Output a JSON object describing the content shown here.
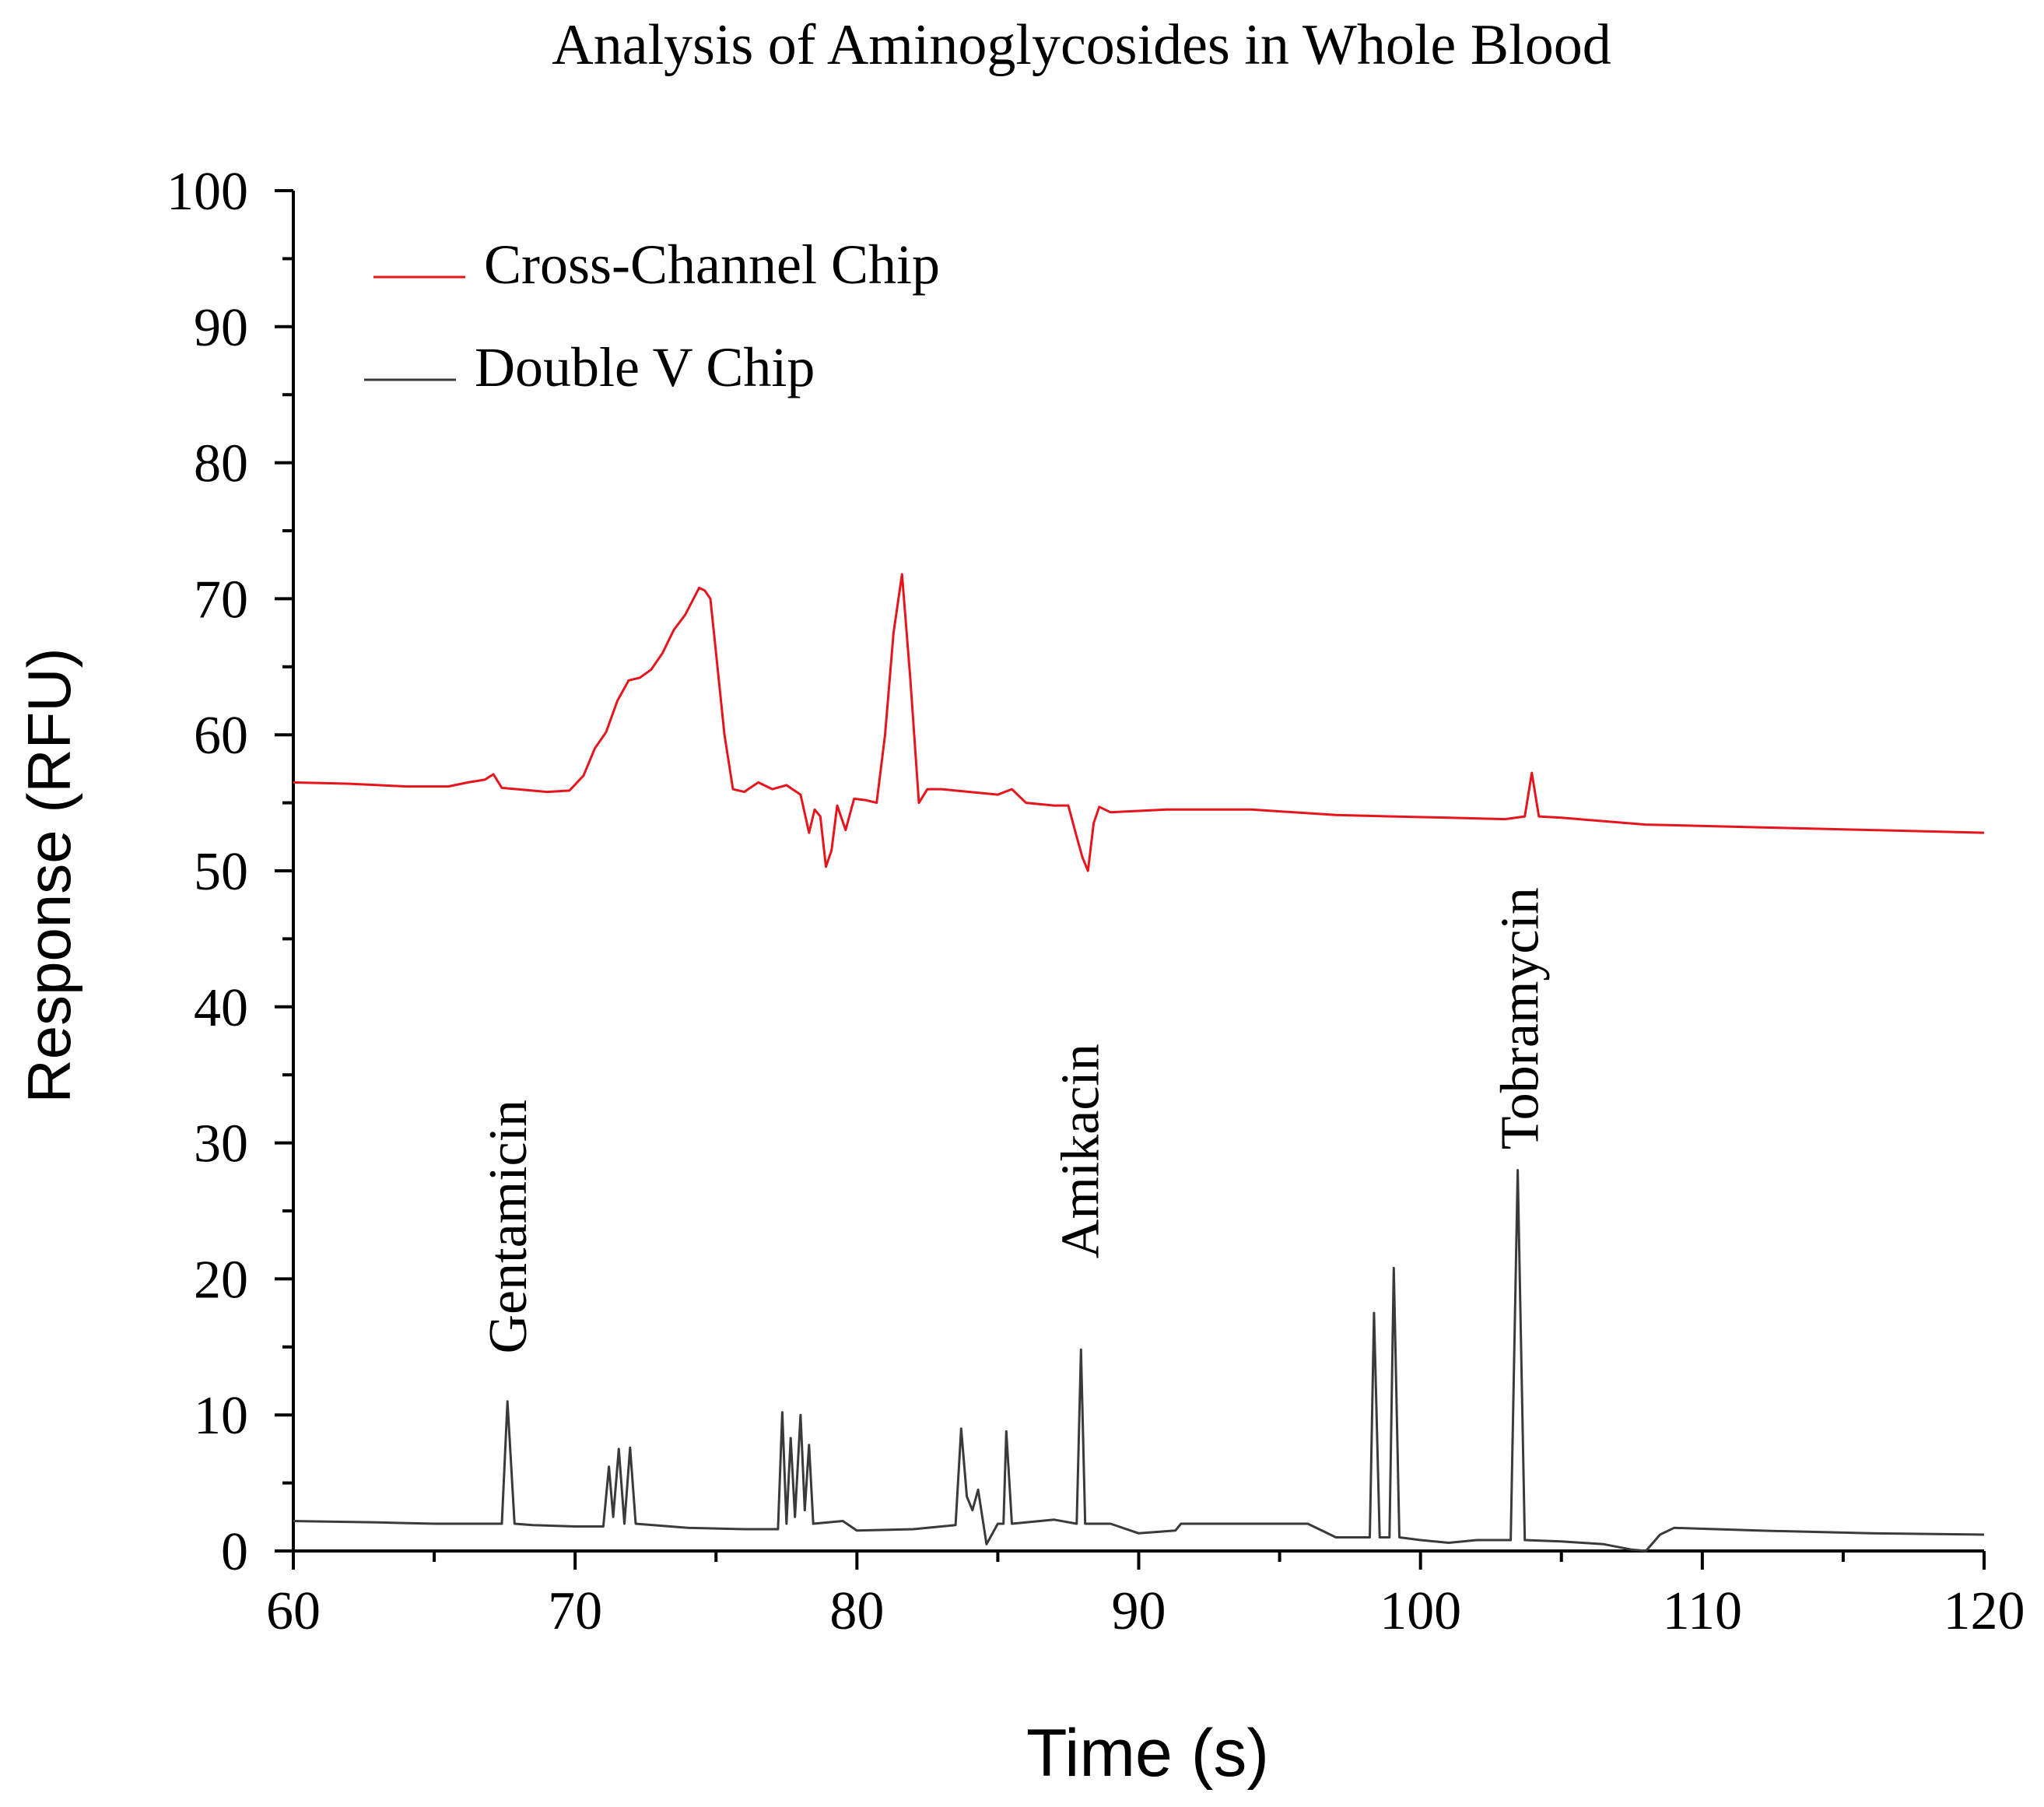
{
  "chart_data": {
    "type": "line",
    "title": "Analysis of Aminoglycosides in Whole Blood",
    "xlabel": "Time (s)",
    "ylabel": "Response (RFU)",
    "xlim": [
      60,
      120
    ],
    "ylim": [
      0,
      100
    ],
    "x_ticks": [
      60,
      70,
      80,
      90,
      100,
      110,
      120
    ],
    "y_ticks": [
      0,
      10,
      20,
      30,
      40,
      50,
      60,
      70,
      80,
      90,
      100
    ],
    "grid": false,
    "legend_position": "top-left",
    "series": [
      {
        "name": "Cross-Channel Chip",
        "color": "#e8141b",
        "points": [
          [
            60,
            56.5
          ],
          [
            62,
            56.4
          ],
          [
            64,
            56.2
          ],
          [
            65.5,
            56.2
          ],
          [
            66.2,
            56.5
          ],
          [
            66.8,
            56.7
          ],
          [
            67.1,
            57.1
          ],
          [
            67.4,
            56.1
          ],
          [
            69,
            55.8
          ],
          [
            69.8,
            55.9
          ],
          [
            70.3,
            57.0
          ],
          [
            70.7,
            59.0
          ],
          [
            71.1,
            60.2
          ],
          [
            71.5,
            62.5
          ],
          [
            71.9,
            64.0
          ],
          [
            72.3,
            64.2
          ],
          [
            72.7,
            64.8
          ],
          [
            73.1,
            66.0
          ],
          [
            73.5,
            67.7
          ],
          [
            73.9,
            68.8
          ],
          [
            74.2,
            70.0
          ],
          [
            74.4,
            70.8
          ],
          [
            74.6,
            70.6
          ],
          [
            74.8,
            70.0
          ],
          [
            75.0,
            66.0
          ],
          [
            75.3,
            60.0
          ],
          [
            75.6,
            56.0
          ],
          [
            76.0,
            55.8
          ],
          [
            76.5,
            56.5
          ],
          [
            77.0,
            56.0
          ],
          [
            77.5,
            56.3
          ],
          [
            78.0,
            55.6
          ],
          [
            78.3,
            52.8
          ],
          [
            78.5,
            54.5
          ],
          [
            78.7,
            54.0
          ],
          [
            78.9,
            50.3
          ],
          [
            79.1,
            51.5
          ],
          [
            79.3,
            54.8
          ],
          [
            79.6,
            53.0
          ],
          [
            79.9,
            55.3
          ],
          [
            80.3,
            55.2
          ],
          [
            80.7,
            55.0
          ],
          [
            81.0,
            60.0
          ],
          [
            81.3,
            67.5
          ],
          [
            81.6,
            71.8
          ],
          [
            81.9,
            64.0
          ],
          [
            82.2,
            55.0
          ],
          [
            82.5,
            56.0
          ],
          [
            83,
            56.0
          ],
          [
            84,
            55.8
          ],
          [
            85,
            55.6
          ],
          [
            85.5,
            56.0
          ],
          [
            86,
            55.0
          ],
          [
            87,
            54.8
          ],
          [
            87.5,
            54.8
          ],
          [
            87.8,
            52.5
          ],
          [
            88.0,
            51.0
          ],
          [
            88.2,
            50.0
          ],
          [
            88.4,
            53.5
          ],
          [
            88.6,
            54.7
          ],
          [
            89,
            54.3
          ],
          [
            91,
            54.5
          ],
          [
            94,
            54.5
          ],
          [
            97,
            54.1
          ],
          [
            99,
            54.0
          ],
          [
            101,
            53.9
          ],
          [
            103,
            53.8
          ],
          [
            103.7,
            54.0
          ],
          [
            103.95,
            57.2
          ],
          [
            104.2,
            54.0
          ],
          [
            105,
            53.9
          ],
          [
            108,
            53.4
          ],
          [
            112,
            53.2
          ],
          [
            116,
            53.0
          ],
          [
            120,
            52.8
          ]
        ]
      },
      {
        "name": "Double V Chip",
        "color": "#3a3a3a",
        "points": [
          [
            60,
            2.2
          ],
          [
            63,
            2.1
          ],
          [
            65,
            2.0
          ],
          [
            67,
            2.0
          ],
          [
            67.4,
            2.0
          ],
          [
            67.6,
            11.0
          ],
          [
            67.85,
            2.0
          ],
          [
            68.5,
            1.9
          ],
          [
            70,
            1.8
          ],
          [
            71.0,
            1.8
          ],
          [
            71.2,
            6.2
          ],
          [
            71.35,
            2.5
          ],
          [
            71.55,
            7.5
          ],
          [
            71.75,
            2.0
          ],
          [
            71.95,
            7.6
          ],
          [
            72.15,
            2.0
          ],
          [
            74,
            1.7
          ],
          [
            76,
            1.6
          ],
          [
            77.2,
            1.6
          ],
          [
            77.35,
            10.2
          ],
          [
            77.5,
            2.0
          ],
          [
            77.65,
            8.3
          ],
          [
            77.8,
            2.5
          ],
          [
            78.0,
            10.0
          ],
          [
            78.15,
            3.0
          ],
          [
            78.3,
            7.8
          ],
          [
            78.45,
            2.0
          ],
          [
            79.5,
            2.2
          ],
          [
            80,
            1.5
          ],
          [
            82,
            1.6
          ],
          [
            83.5,
            1.9
          ],
          [
            83.7,
            9.0
          ],
          [
            83.9,
            4.0
          ],
          [
            84.1,
            3.0
          ],
          [
            84.3,
            4.5
          ],
          [
            84.6,
            0.5
          ],
          [
            85.0,
            2.0
          ],
          [
            85.2,
            2.0
          ],
          [
            85.3,
            8.8
          ],
          [
            85.5,
            2.0
          ],
          [
            87,
            2.3
          ],
          [
            87.8,
            2.0
          ],
          [
            87.95,
            14.8
          ],
          [
            88.1,
            2.0
          ],
          [
            89,
            2.0
          ],
          [
            90,
            1.3
          ],
          [
            91.3,
            1.5
          ],
          [
            91.5,
            2.0
          ],
          [
            93,
            2.0
          ],
          [
            96,
            2.0
          ],
          [
            97,
            1.0
          ],
          [
            98.2,
            1.0
          ],
          [
            98.35,
            17.5
          ],
          [
            98.55,
            1.0
          ],
          [
            98.9,
            1.0
          ],
          [
            99.05,
            20.8
          ],
          [
            99.25,
            1.0
          ],
          [
            100,
            0.8
          ],
          [
            101,
            0.6
          ],
          [
            102,
            0.8
          ],
          [
            103.2,
            0.8
          ],
          [
            103.45,
            28.0
          ],
          [
            103.7,
            0.8
          ],
          [
            105,
            0.7
          ],
          [
            106.5,
            0.5
          ],
          [
            107.5,
            0.1
          ],
          [
            108.0,
            0.0
          ],
          [
            108.5,
            1.2
          ],
          [
            109,
            1.7
          ],
          [
            112,
            1.5
          ],
          [
            116,
            1.3
          ],
          [
            120,
            1.2
          ]
        ]
      }
    ],
    "annotations": [
      {
        "text": "Gentamicin",
        "x": 67.6,
        "y": 14.5
      },
      {
        "text": "Amikacin",
        "x": 87.9,
        "y": 21.5
      },
      {
        "text": "Tobramycin",
        "x": 103.5,
        "y": 29.5
      }
    ]
  }
}
